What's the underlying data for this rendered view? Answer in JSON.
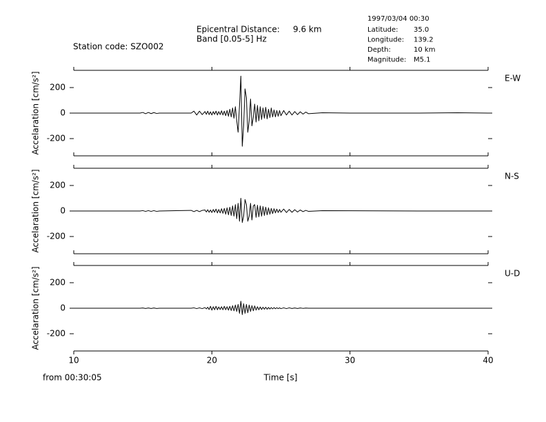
{
  "header": {
    "station": "Station code: SZO002",
    "distance_label": "Epicentral Distance:",
    "distance_value": "9.6 km",
    "band": "Band [0.05-5] Hz",
    "datetime": "1997/03/04 00:30",
    "params": [
      {
        "label": "Latitude:",
        "value": "35.0"
      },
      {
        "label": "Longitude:",
        "value": "139.2"
      },
      {
        "label": "Depth:",
        "value": "10 km"
      },
      {
        "label": "Magnitude:",
        "value": "M5.1"
      }
    ]
  },
  "chart_data": [
    {
      "type": "line",
      "name": "E-W",
      "ylabel": "Accelaration [cm/s²]",
      "color": "#000000",
      "xlim": [
        10,
        40
      ],
      "xticks": [
        10,
        20,
        30,
        40
      ],
      "ylim": [
        -335,
        335
      ],
      "yticks": [
        -200,
        0,
        200
      ],
      "x": [
        10,
        14.8,
        15,
        15.2,
        15.4,
        15.6,
        15.8,
        16,
        16.2,
        18.5,
        18.7,
        18.9,
        19.1,
        19.3,
        19.5,
        19.6,
        19.7,
        19.8,
        19.9,
        20,
        20.1,
        20.2,
        20.3,
        20.4,
        20.5,
        20.6,
        20.7,
        20.8,
        20.9,
        21,
        21.1,
        21.2,
        21.3,
        21.4,
        21.5,
        21.6,
        21.7,
        21.8,
        21.9,
        22,
        22.1,
        22.2,
        22.3,
        22.4,
        22.5,
        22.6,
        22.7,
        22.8,
        22.9,
        23,
        23.1,
        23.2,
        23.3,
        23.4,
        23.5,
        23.6,
        23.7,
        23.8,
        23.9,
        24,
        24.1,
        24.2,
        24.3,
        24.4,
        24.5,
        24.6,
        24.7,
        24.8,
        24.9,
        25,
        25.2,
        25.4,
        25.6,
        25.8,
        26,
        26.2,
        26.4,
        26.6,
        26.8,
        27,
        28,
        30,
        35,
        37.8,
        40
      ],
      "values": [
        0,
        0,
        5,
        -5,
        5,
        -4,
        4,
        -3,
        0,
        0,
        15,
        -15,
        15,
        -12,
        12,
        -10,
        15,
        -12,
        10,
        -15,
        12,
        -10,
        15,
        -15,
        12,
        -12,
        18,
        -15,
        15,
        -20,
        20,
        -25,
        30,
        -30,
        40,
        -40,
        50,
        -60,
        -150,
        60,
        290,
        -260,
        -100,
        190,
        120,
        -150,
        -60,
        110,
        -100,
        -30,
        70,
        -70,
        60,
        -60,
        50,
        -50,
        40,
        -40,
        45,
        -45,
        30,
        -35,
        40,
        -30,
        25,
        -30,
        20,
        -25,
        20,
        -20,
        20,
        -15,
        15,
        -15,
        12,
        -12,
        10,
        -8,
        8,
        -5,
        3,
        0,
        0,
        3,
        0
      ]
    },
    {
      "type": "line",
      "name": "N-S",
      "ylabel": "Accelaration [cm/s²]",
      "color": "#000000",
      "xlim": [
        10,
        40
      ],
      "xticks": [
        10,
        20,
        30,
        40
      ],
      "ylim": [
        -335,
        335
      ],
      "yticks": [
        -200,
        0,
        200
      ],
      "x": [
        10,
        14.8,
        15,
        15.2,
        15.4,
        15.6,
        15.8,
        16,
        16.2,
        18.5,
        18.7,
        18.9,
        19.1,
        19.3,
        19.5,
        19.6,
        19.7,
        19.8,
        19.9,
        20,
        20.1,
        20.2,
        20.3,
        20.4,
        20.5,
        20.6,
        20.7,
        20.8,
        20.9,
        21,
        21.1,
        21.2,
        21.3,
        21.4,
        21.5,
        21.6,
        21.7,
        21.8,
        21.9,
        22,
        22.1,
        22.2,
        22.3,
        22.4,
        22.5,
        22.6,
        22.7,
        22.8,
        22.9,
        23,
        23.1,
        23.2,
        23.3,
        23.4,
        23.5,
        23.6,
        23.7,
        23.8,
        23.9,
        24,
        24.1,
        24.2,
        24.3,
        24.4,
        24.5,
        24.6,
        24.7,
        24.8,
        24.9,
        25,
        25.2,
        25.4,
        25.6,
        25.8,
        26,
        26.2,
        26.4,
        26.6,
        26.8,
        27,
        28,
        30,
        35,
        37.8,
        40
      ],
      "values": [
        0,
        0,
        3,
        -3,
        3,
        -3,
        3,
        -3,
        0,
        5,
        -5,
        5,
        -5,
        5,
        8,
        -8,
        10,
        -10,
        8,
        -12,
        12,
        -10,
        15,
        -15,
        12,
        -15,
        18,
        -18,
        20,
        -25,
        25,
        -30,
        30,
        -35,
        40,
        -40,
        50,
        -60,
        60,
        -80,
        100,
        -90,
        -40,
        90,
        50,
        -80,
        -40,
        60,
        -70,
        40,
        50,
        -50,
        45,
        -45,
        40,
        -40,
        35,
        -35,
        30,
        -30,
        25,
        -25,
        20,
        -20,
        18,
        -15,
        15,
        -12,
        12,
        -10,
        15,
        -12,
        12,
        -10,
        10,
        -8,
        8,
        -5,
        5,
        -3,
        3,
        2,
        0,
        0,
        0
      ]
    },
    {
      "type": "line",
      "name": "U-D",
      "ylabel": "Accelaration [cm/s²]",
      "color": "#000000",
      "xlabel": "Time [s]",
      "note": "from 00:30:05",
      "xlim": [
        10,
        40
      ],
      "xticks": [
        10,
        20,
        30,
        40
      ],
      "ylim": [
        -335,
        335
      ],
      "yticks": [
        -200,
        0,
        200
      ],
      "x": [
        10,
        14.8,
        15,
        15.2,
        15.4,
        15.6,
        15.8,
        16,
        16.2,
        18.5,
        18.7,
        18.9,
        19.1,
        19.3,
        19.5,
        19.6,
        19.7,
        19.8,
        19.9,
        20,
        20.1,
        20.2,
        20.3,
        20.4,
        20.5,
        20.6,
        20.7,
        20.8,
        20.9,
        21,
        21.1,
        21.2,
        21.3,
        21.4,
        21.5,
        21.6,
        21.7,
        21.8,
        21.9,
        22,
        22.1,
        22.2,
        22.3,
        22.4,
        22.5,
        22.6,
        22.7,
        22.8,
        22.9,
        23,
        23.1,
        23.2,
        23.3,
        23.4,
        23.5,
        23.6,
        23.7,
        23.8,
        23.9,
        24,
        24.1,
        24.2,
        24.3,
        24.4,
        24.5,
        24.6,
        24.7,
        24.8,
        24.9,
        25,
        25.2,
        25.4,
        25.6,
        25.8,
        26,
        26.2,
        26.4,
        26.6,
        26.8,
        27,
        28,
        30,
        35,
        37.8,
        40
      ],
      "values": [
        0,
        0,
        2,
        -2,
        2,
        -2,
        2,
        -2,
        0,
        0,
        3,
        -3,
        3,
        -3,
        5,
        -5,
        8,
        -10,
        15,
        -15,
        12,
        -12,
        15,
        -12,
        10,
        -10,
        12,
        -12,
        15,
        -12,
        12,
        -15,
        15,
        -18,
        20,
        -20,
        25,
        -25,
        30,
        -40,
        55,
        -50,
        35,
        -40,
        30,
        -35,
        25,
        -25,
        20,
        -20,
        18,
        -15,
        12,
        -12,
        10,
        -10,
        8,
        -8,
        8,
        -8,
        6,
        -6,
        5,
        -5,
        5,
        -4,
        4,
        -3,
        3,
        -3,
        3,
        -3,
        3,
        -2,
        2,
        -2,
        2,
        -1,
        1,
        0,
        0,
        0,
        0,
        0,
        0
      ]
    }
  ]
}
